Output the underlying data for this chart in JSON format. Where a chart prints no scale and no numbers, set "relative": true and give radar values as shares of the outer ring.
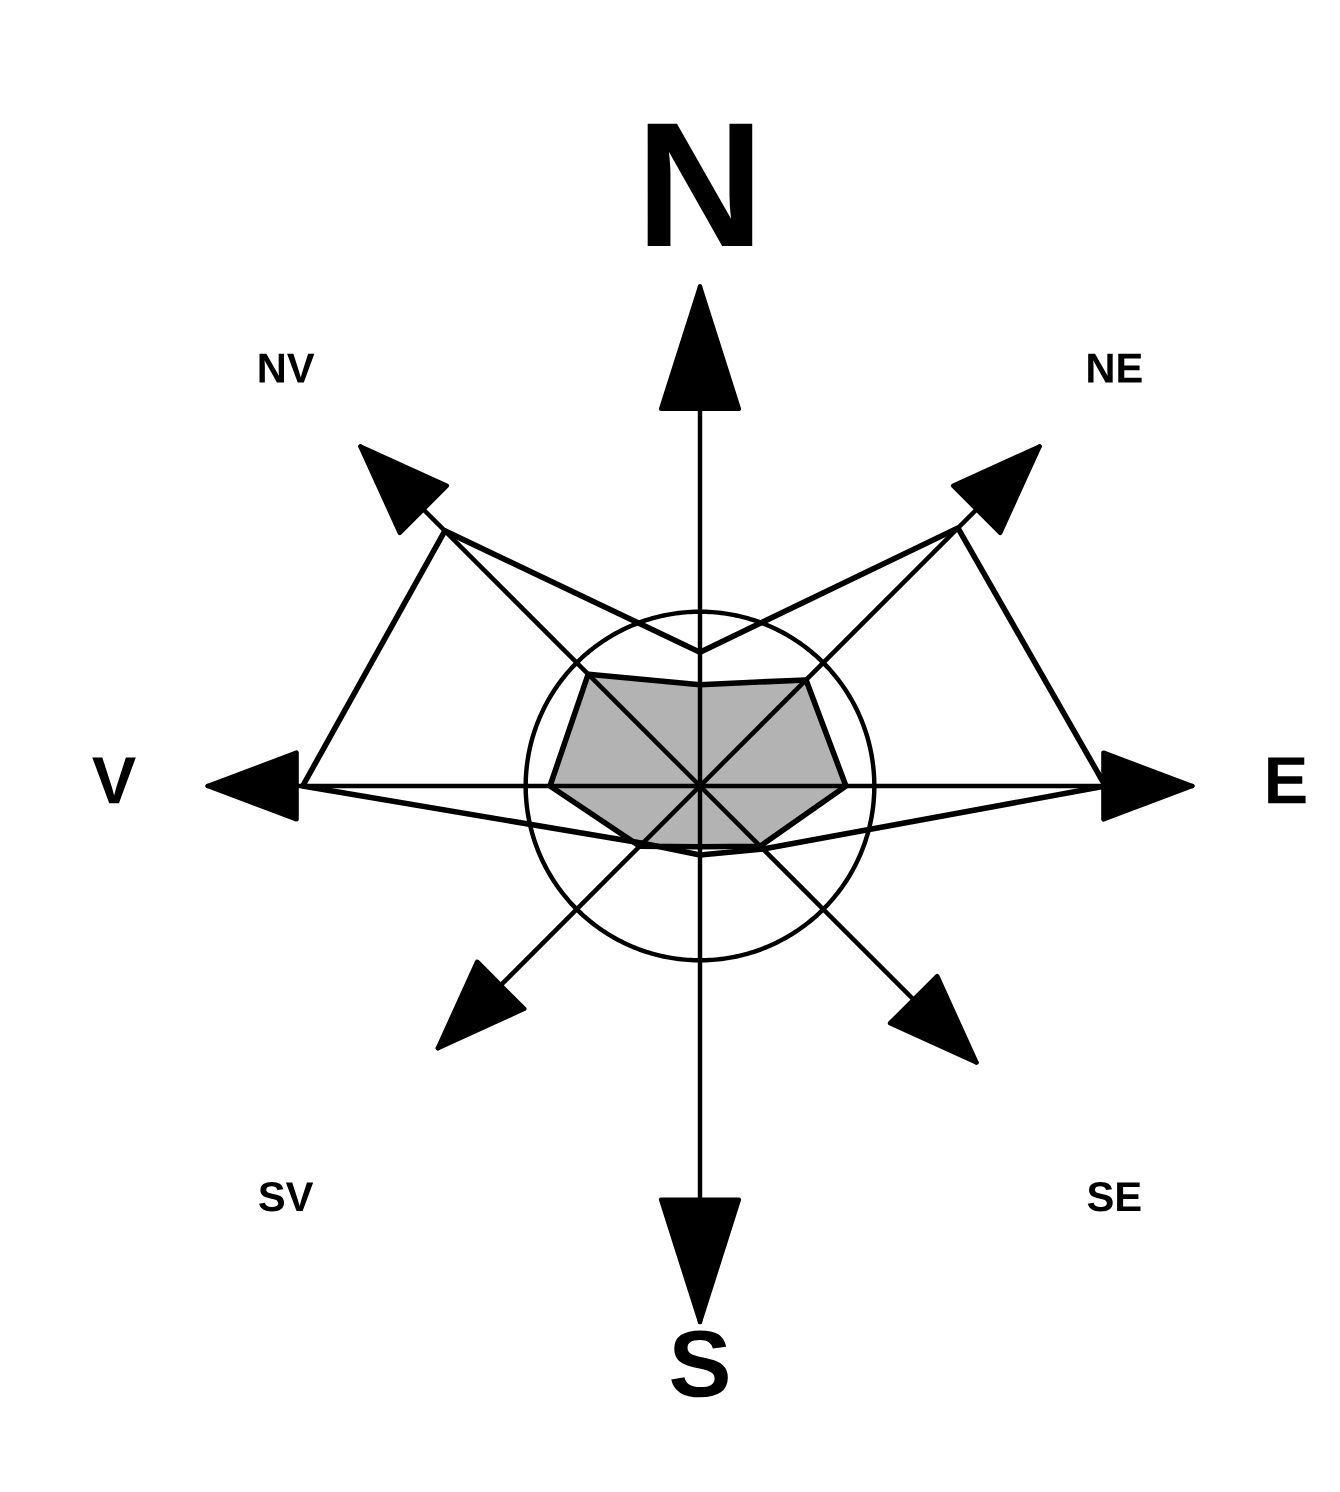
{
  "chart_data": {
    "type": "radar",
    "relative": true,
    "categories": [
      "N",
      "NE",
      "E",
      "SE",
      "S",
      "SV",
      "V",
      "NV"
    ],
    "series": [
      {
        "color": "#b3b3b3",
        "values": [
          0.25,
          0.37,
          0.36,
          0.21,
          0.15,
          0.21,
          0.37,
          0.39
        ]
      },
      {
        "color": "#000000",
        "values": [
          0.33,
          0.9,
          1.0,
          0.22,
          0.17,
          0.2,
          0.98,
          0.89
        ]
      }
    ]
  }
}
